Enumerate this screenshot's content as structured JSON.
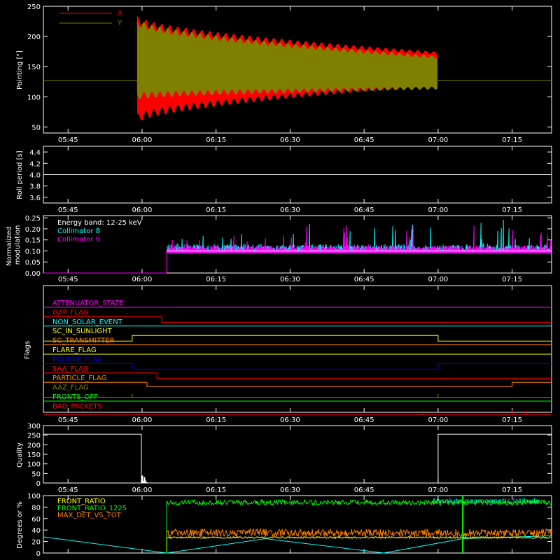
{
  "colors": {
    "x": "#ff0000",
    "y": "#808000",
    "white": "#ffffff",
    "cyan": "#00ffff",
    "magenta": "#ff00ff",
    "green": "#00ff00",
    "orange": "#ff8000",
    "yellow": "#ffff00",
    "blue": "#0000ff",
    "olive": "#808000"
  },
  "time_ticks": [
    "05:45",
    "06:00",
    "06:15",
    "06:30",
    "06:45",
    "07:00",
    "07:15"
  ],
  "chart_data": [
    {
      "type": "line",
      "ylabel": "Pointing [\"]",
      "yticks": [
        50,
        100,
        150,
        200,
        250
      ],
      "ylim": [
        40,
        250
      ],
      "legend": [
        {
          "name": "X",
          "color": "#ff0000"
        },
        {
          "name": "Y",
          "color": "#808000"
        }
      ],
      "series": [
        {
          "name": "X",
          "baseline": 127,
          "start": "05:59",
          "end": "07:00",
          "min_start": 55,
          "max_start": 235,
          "min_end": 118,
          "max_end": 175
        },
        {
          "name": "Y",
          "baseline": 127,
          "start": "05:59",
          "end": "07:00",
          "min_start": 95,
          "max_start": 230,
          "min_end": 112,
          "max_end": 168
        }
      ]
    },
    {
      "type": "line",
      "ylabel": "Roll period [s]",
      "yticks": [
        3.6,
        3.8,
        4.0,
        4.2,
        4.4
      ],
      "ylim": [
        3.5,
        4.5
      ],
      "series": [
        {
          "name": "roll",
          "value": 4.0
        }
      ]
    },
    {
      "type": "line",
      "ylabel": "Normalized modulation",
      "yticks": [
        0.0,
        0.05,
        0.1,
        0.15,
        0.2,
        0.25
      ],
      "ylim": [
        0,
        0.26
      ],
      "annotation": "Energy band: 12-25 keV",
      "series": [
        {
          "name": "Collimator 8",
          "color": "#00ffff",
          "start": "06:05",
          "level": 0.1
        },
        {
          "name": "Collimator 9",
          "color": "#ff00ff",
          "start": "06:05",
          "level": 0.1
        }
      ]
    },
    {
      "type": "line",
      "ylabel": "Flags",
      "flags": [
        {
          "name": "ATTENUATOR_STATE",
          "color": "#ff00ff"
        },
        {
          "name": "GAP_FLAG",
          "color": "#ff0000"
        },
        {
          "name": "NON_SOLAR_EVENT",
          "color": "#00ffff"
        },
        {
          "name": "SC_IN_SUNLIGHT",
          "color": "#ffff00"
        },
        {
          "name": "SC_TRANSMITTER",
          "color": "#ff8000"
        },
        {
          "name": "FLARE_FLAG",
          "color": "#ffff00"
        },
        {
          "name": "ECLIPSE_FLAG",
          "color": "#0000ff"
        },
        {
          "name": "SAA_FLAG",
          "color": "#ff0000"
        },
        {
          "name": "PARTICLE_FLAG",
          "color": "#ff8000"
        },
        {
          "name": "AAZ_FLAG",
          "color": "#808000"
        },
        {
          "name": "FRONTS_OFF",
          "color": "#00ff00"
        },
        {
          "name": "BAD_PACKETS",
          "color": "#ff0000"
        }
      ]
    },
    {
      "type": "line",
      "ylabel": "Quality",
      "yticks": [
        0,
        50,
        100,
        150,
        200,
        250,
        300
      ],
      "ylim": [
        0,
        300
      ],
      "series": [
        {
          "name": "quality",
          "high": 255,
          "low": 0,
          "gap_start": "06:00",
          "gap_end": "07:00"
        }
      ]
    },
    {
      "type": "line",
      "ylabel": "Degrees or %",
      "yticks": [
        0,
        20,
        40,
        60,
        80,
        100
      ],
      "ylim": [
        0,
        100
      ],
      "annotation": "Absolute geomagnetic latitude",
      "series": [
        {
          "name": "FRONT_RATIO",
          "color": "#ffff00",
          "level": 27
        },
        {
          "name": "FRONT_RATIO_1225",
          "color": "#00ff00",
          "level": 88
        },
        {
          "name": "MAX_DET_VS_TOT",
          "color": "#ff8000",
          "level": 35
        },
        {
          "name": "Absolute geomagnetic latitude",
          "color": "#00ffff"
        }
      ]
    }
  ]
}
